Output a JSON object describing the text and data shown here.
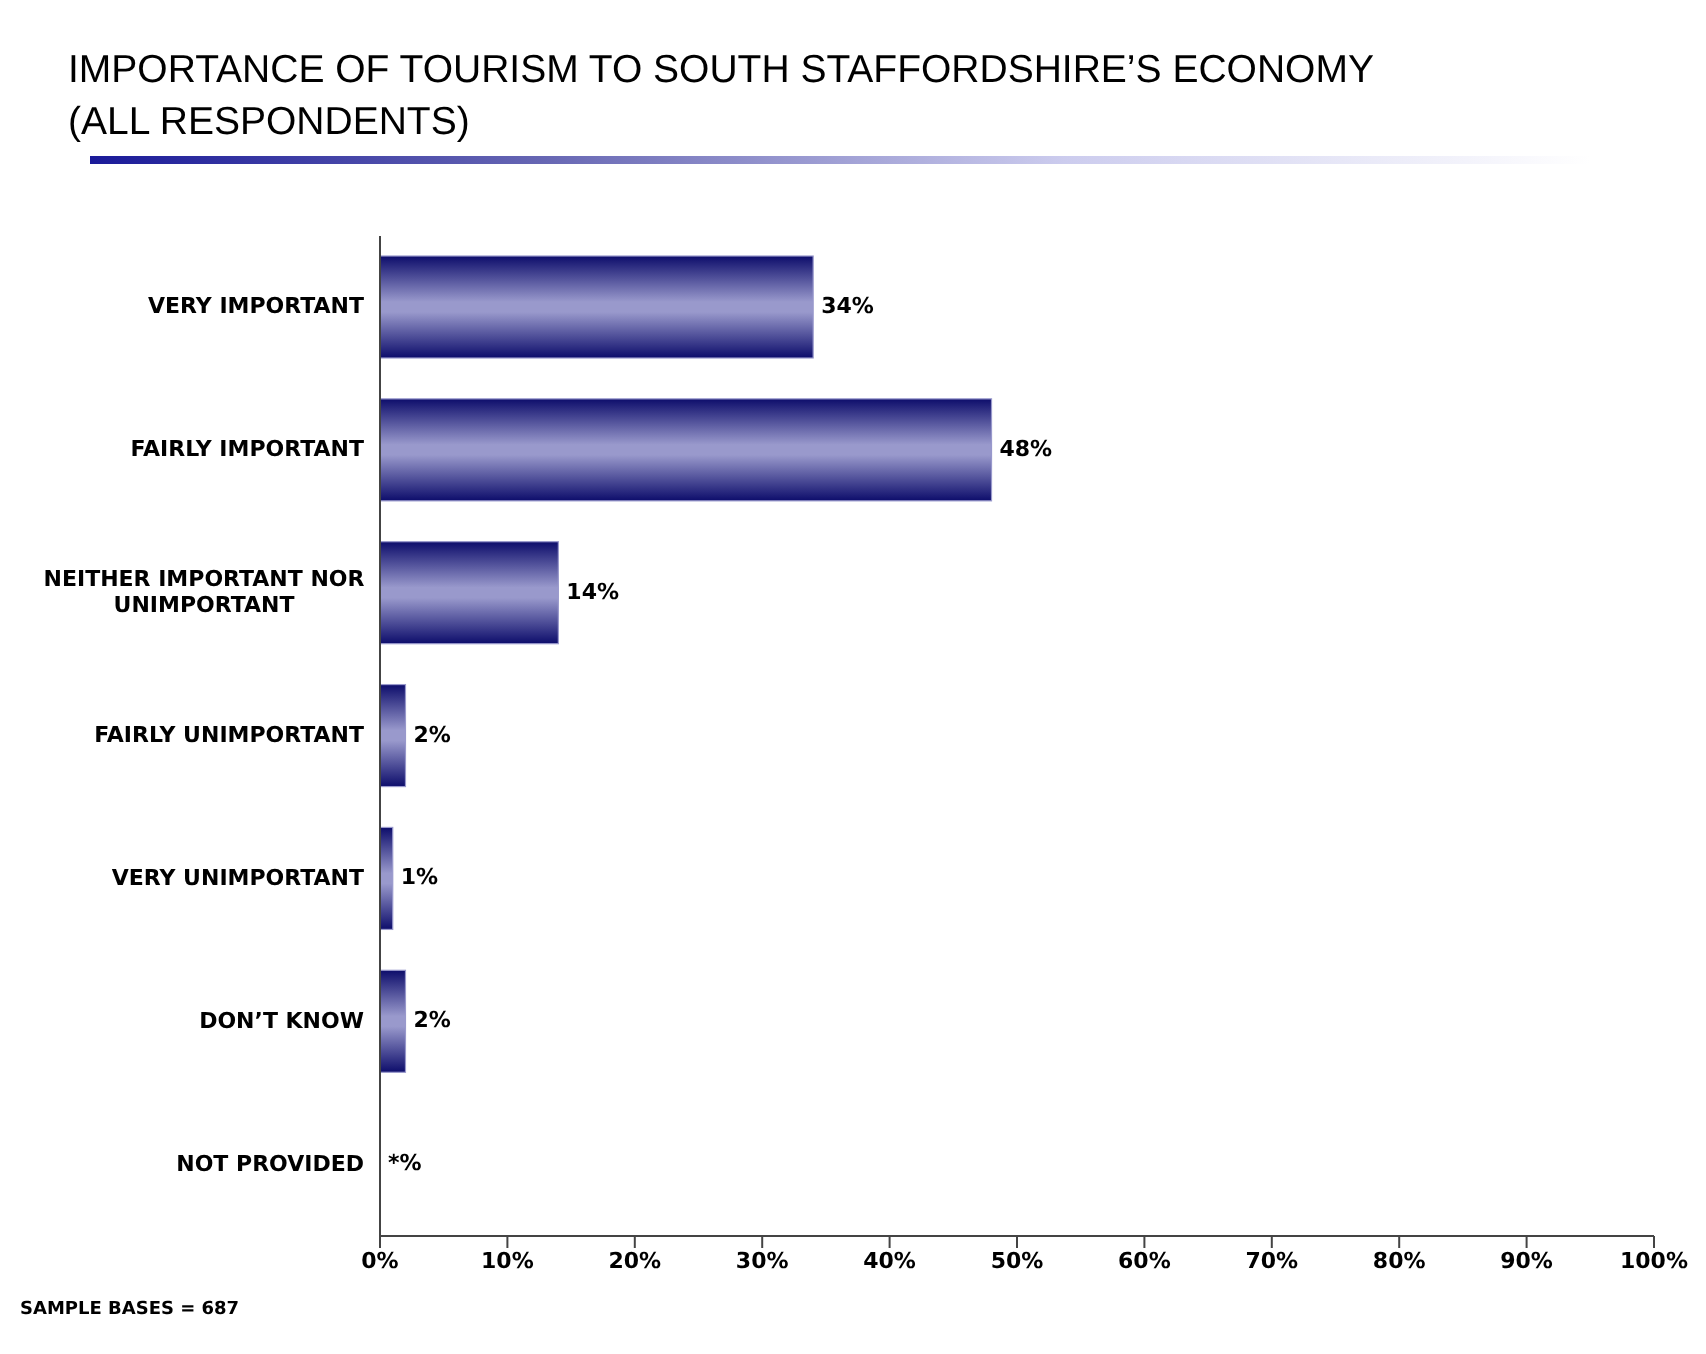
{
  "chart_data": {
    "type": "bar",
    "orientation": "horizontal",
    "title": "IMPORTANCE OF TOURISM TO SOUTH STAFFORDSHIRE’S ECONOMY",
    "subtitle": "(ALL RESPONDENTS)",
    "categories": [
      "VERY IMPORTANT",
      "FAIRLY IMPORTANT",
      "NEITHER IMPORTANT NOR UNIMPORTANT",
      "FAIRLY UNIMPORTANT",
      "VERY UNIMPORTANT",
      "DON’T KNOW",
      "NOT PROVIDED"
    ],
    "values": [
      34,
      48,
      14,
      2,
      1,
      2,
      0
    ],
    "value_labels": [
      "34%",
      "48%",
      "14%",
      "2%",
      "1%",
      "2%",
      "*%"
    ],
    "color": "#9999cc",
    "xlim": [
      0,
      100
    ],
    "xticks": [
      {
        "value": 0,
        "label": "0%"
      },
      {
        "value": 10,
        "label": "10%"
      },
      {
        "value": 20,
        "label": "20%"
      },
      {
        "value": 30,
        "label": "30%"
      },
      {
        "value": 40,
        "label": "40%"
      },
      {
        "value": 50,
        "label": "50%"
      },
      {
        "value": 60,
        "label": "60%"
      },
      {
        "value": 70,
        "label": "70%"
      },
      {
        "value": 80,
        "label": "80%"
      },
      {
        "value": 90,
        "label": "90%"
      },
      {
        "value": 100,
        "label": "100%"
      }
    ],
    "grid": false,
    "legend": false,
    "annotations": [
      "SAMPLE BASES = 687"
    ]
  }
}
